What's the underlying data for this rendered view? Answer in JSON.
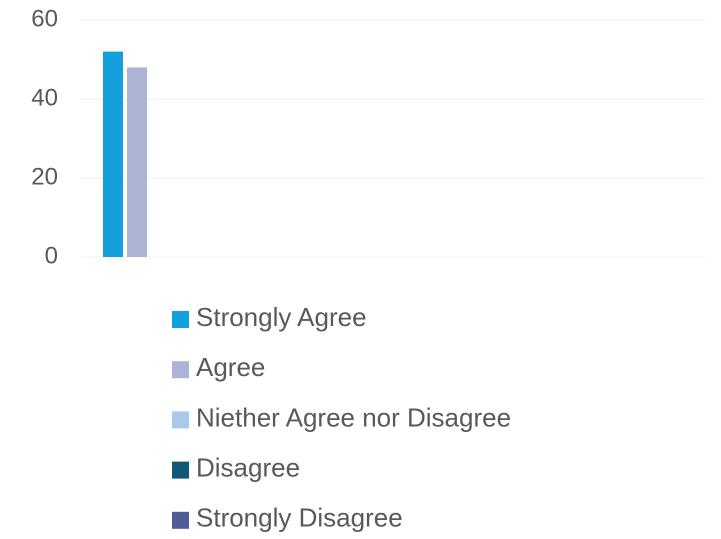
{
  "chart_data": {
    "type": "bar",
    "categories": [
      null
    ],
    "series": [
      {
        "name": "Strongly Agree",
        "color": "#14a0dc",
        "values": [
          52
        ]
      },
      {
        "name": "Agree",
        "color": "#abb4d4",
        "values": [
          48
        ]
      },
      {
        "name": "Niether Agree nor Disagree",
        "color": "#a9c9ea",
        "values": [
          0
        ]
      },
      {
        "name": "Disagree",
        "color": "#0e5a76",
        "values": [
          0
        ]
      },
      {
        "name": "Strongly Disagree",
        "color": "#4f5b98",
        "values": [
          0
        ]
      }
    ],
    "ylim": [
      0,
      60
    ],
    "yticks": [
      0,
      20,
      40,
      60
    ],
    "grid": true,
    "legend": "bottom"
  }
}
